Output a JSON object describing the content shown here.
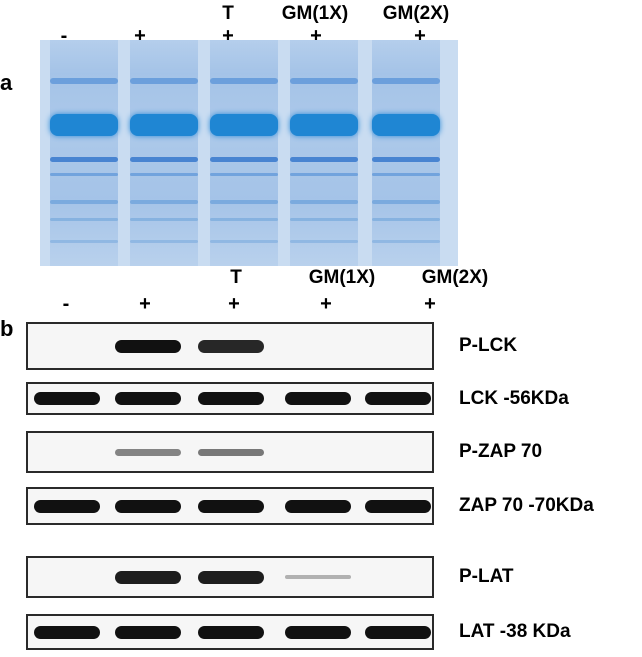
{
  "panel_a": {
    "letter": "a",
    "top_labels": [
      "T",
      "GM(1X)",
      "GM(2X)"
    ],
    "signs": [
      "-",
      "+",
      "+",
      "+",
      "+"
    ]
  },
  "panel_b": {
    "letter": "b",
    "top_labels": [
      "T",
      "GM(1X)",
      "GM(2X)"
    ],
    "signs": [
      "-",
      "+",
      "+",
      "+",
      "+"
    ],
    "blots": [
      {
        "label": "P-LCK",
        "bands": [
          0,
          1,
          0.9,
          0,
          0
        ]
      },
      {
        "label": "LCK -56KDa",
        "bands": [
          1,
          1,
          1,
          1,
          1
        ]
      },
      {
        "label": "P-ZAP 70",
        "bands": [
          0,
          0.5,
          0.55,
          0,
          0
        ]
      },
      {
        "label": "ZAP 70 -70KDa",
        "bands": [
          1,
          1,
          1,
          1,
          1
        ]
      },
      {
        "label": "P-LAT",
        "bands": [
          0,
          0.95,
          0.95,
          0.3,
          0
        ]
      },
      {
        "label": "LAT -38 KDa",
        "bands": [
          1,
          1,
          1,
          1,
          1
        ]
      }
    ]
  },
  "colors": {
    "gel_background": "#c9dcf1",
    "gel_main_band": "#1f86d3",
    "blot_background": "#f6f6f6",
    "blot_band": "#111111"
  }
}
